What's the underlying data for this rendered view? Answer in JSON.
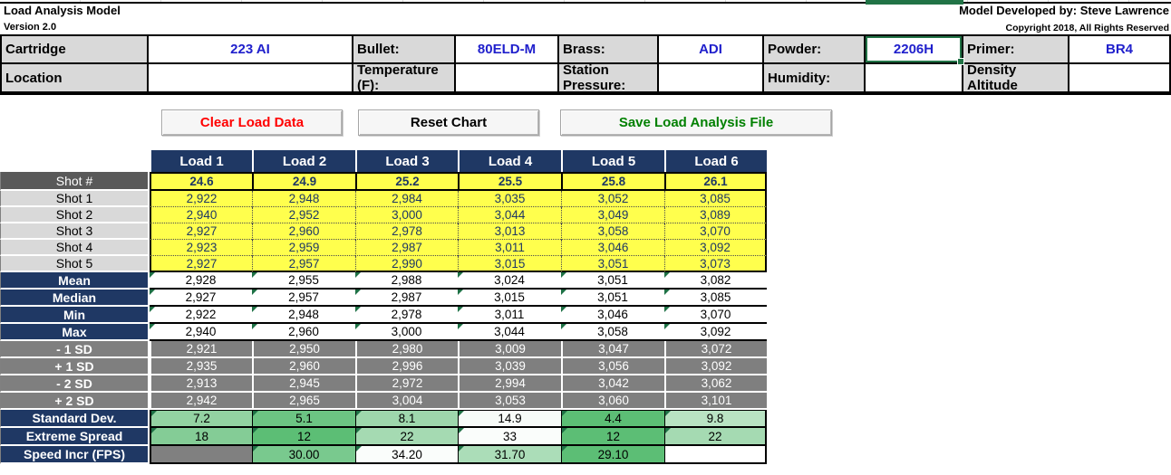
{
  "titles": {
    "app": "Load Analysis Model",
    "version": "Version 2.0",
    "developed_by": "Model Developed by: Steve Lawrence",
    "copyright": "Copyright 2018, All Rights Reserved"
  },
  "form": {
    "rows": [
      [
        {
          "label": "Cartridge",
          "value": "223 AI"
        },
        {
          "label": "Bullet:",
          "value": "80ELD-M"
        },
        {
          "label": "Brass:",
          "value": "ADI"
        },
        {
          "label": "Powder:",
          "value": "2206H",
          "selected": true
        },
        {
          "label": "Primer:",
          "value": "BR4"
        }
      ],
      [
        {
          "label": "Location",
          "value": ""
        },
        {
          "label": "Temperature (F):",
          "value": ""
        },
        {
          "label": "Station Pressure:",
          "value": ""
        },
        {
          "label": "Humidity:",
          "value": ""
        },
        {
          "label": "Density Altitude",
          "value": ""
        }
      ]
    ]
  },
  "buttons": [
    {
      "label": "Clear Load Data",
      "text_color": "#FF0000"
    },
    {
      "label": "Reset Chart",
      "text_color": "#000000"
    },
    {
      "label": "Save Load Analysis File",
      "text_color": "#008000"
    }
  ],
  "table": {
    "columns": [
      "Load 1",
      "Load 2",
      "Load 3",
      "Load 4",
      "Load 5",
      "Load 6"
    ],
    "rows": [
      {
        "label": "Shot #",
        "style": "charge",
        "values": [
          "24.6",
          "24.9",
          "25.2",
          "25.5",
          "25.8",
          "26.1"
        ]
      },
      {
        "label": "Shot 1",
        "style": "shot",
        "values": [
          "2,922",
          "2,948",
          "2,984",
          "3,035",
          "3,052",
          "3,085"
        ]
      },
      {
        "label": "Shot 2",
        "style": "shot",
        "values": [
          "2,940",
          "2,952",
          "3,000",
          "3,044",
          "3,049",
          "3,089"
        ]
      },
      {
        "label": "Shot 3",
        "style": "shot",
        "values": [
          "2,927",
          "2,960",
          "2,978",
          "3,013",
          "3,058",
          "3,070"
        ]
      },
      {
        "label": "Shot 4",
        "style": "shot",
        "values": [
          "2,923",
          "2,959",
          "2,987",
          "3,011",
          "3,046",
          "3,092"
        ]
      },
      {
        "label": "Shot 5",
        "style": "shot",
        "values": [
          "2,927",
          "2,957",
          "2,990",
          "3,015",
          "3,051",
          "3,073"
        ]
      },
      {
        "label": "Mean",
        "style": "stat",
        "flags": true,
        "values": [
          "2,928",
          "2,955",
          "2,988",
          "3,024",
          "3,051",
          "3,082"
        ]
      },
      {
        "label": "Median",
        "style": "stat",
        "flags": true,
        "values": [
          "2,927",
          "2,957",
          "2,987",
          "3,015",
          "3,051",
          "3,085"
        ]
      },
      {
        "label": "Min",
        "style": "stat",
        "flags": true,
        "values": [
          "2,922",
          "2,948",
          "2,978",
          "3,011",
          "3,046",
          "3,070"
        ]
      },
      {
        "label": "Max",
        "style": "stat",
        "flags": true,
        "values": [
          "2,940",
          "2,960",
          "3,000",
          "3,044",
          "3,058",
          "3,092"
        ]
      },
      {
        "label": "- 1 SD",
        "style": "sd",
        "values": [
          "2,921",
          "2,950",
          "2,980",
          "3,009",
          "3,047",
          "3,072"
        ]
      },
      {
        "label": "+ 1 SD",
        "style": "sd",
        "values": [
          "2,935",
          "2,960",
          "2,996",
          "3,039",
          "3,056",
          "3,092"
        ]
      },
      {
        "label": "- 2 SD",
        "style": "sd",
        "values": [
          "2,913",
          "2,945",
          "2,972",
          "2,994",
          "3,042",
          "3,062"
        ]
      },
      {
        "label": "+ 2 SD",
        "style": "sd",
        "values": [
          "2,942",
          "2,965",
          "3,004",
          "3,053",
          "3,060",
          "3,101"
        ]
      },
      {
        "label": "Standard Dev.",
        "style": "result",
        "flags": true,
        "values": [
          "7.2",
          "5.1",
          "8.1",
          "14.9",
          "4.4",
          "9.8"
        ],
        "cell_colors": [
          "#93D2A2",
          "#6CC483",
          "#9ED7AC",
          "#F7FBF8",
          "#5CBE75",
          "#B9E3C3"
        ]
      },
      {
        "label": "Extreme Spread",
        "style": "result",
        "flags": true,
        "values": [
          "18",
          "12",
          "22",
          "33",
          "12",
          "22"
        ],
        "cell_colors": [
          "#84CC96",
          "#5CBE75",
          "#A5DAB2",
          "#FAFDFB",
          "#5CBE75",
          "#A5DAB2"
        ]
      },
      {
        "label": "Speed Incr (FPS)",
        "style": "result",
        "flags": true,
        "values": [
          "",
          "30.00",
          "34.20",
          "31.70",
          "29.10",
          ""
        ],
        "cell_colors": [
          "#808080",
          "#79C98E",
          "#FAFDFB",
          "#ABDDB8",
          "#5CBE75",
          "#FFFFFF"
        ]
      }
    ]
  },
  "colors": {
    "header_navy": "#1F3864",
    "charge_gray": "#595959",
    "label_gray": "#D9D9D9",
    "sd_gray": "#7F7F7F",
    "shot_yellow": "#FFFF4D",
    "value_blue": "#2020CC",
    "select_green": "#217346",
    "flag_green": "#1E7145"
  }
}
